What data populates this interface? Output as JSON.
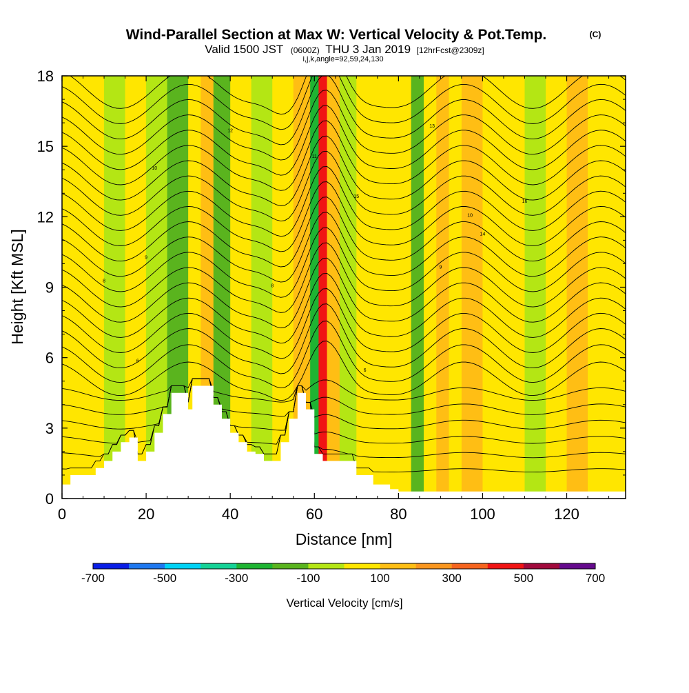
{
  "header": {
    "title": "Wind-Parallel Section at Max W: Vertical Velocity & Pot.Temp.",
    "copyright": "(C)",
    "valid_prefix": "Valid 1500 JST",
    "valid_utc": "(0600Z)",
    "valid_date": "THU 3 Jan 2019",
    "forecast": "[12hrFcst@2309z]",
    "params": "i,j,k,angle=92,59,24,130"
  },
  "chart_data": {
    "type": "heatmap",
    "title": "Wind-Parallel Section at Max W: Vertical Velocity & Pot.Temp.",
    "xlabel": "Distance [nm]",
    "ylabel": "Height [Kft MSL]",
    "xlim": [
      0,
      134
    ],
    "ylim": [
      0,
      18
    ],
    "x_ticks": [
      "0",
      "20",
      "40",
      "60",
      "80",
      "100",
      "120"
    ],
    "y_ticks": [
      "0",
      "3",
      "6",
      "9",
      "12",
      "15",
      "18"
    ],
    "velocity_columns": {
      "x": [
        0,
        5,
        10,
        15,
        20,
        25,
        27,
        30,
        33,
        36,
        40,
        45,
        50,
        55,
        57,
        59,
        61,
        63,
        66,
        70,
        75,
        80,
        83,
        86,
        89,
        92,
        95,
        100,
        105,
        110,
        115,
        120,
        125,
        130,
        134
      ],
      "w_cms": [
        30,
        60,
        -60,
        50,
        -60,
        -120,
        -160,
        40,
        120,
        -110,
        70,
        -60,
        60,
        110,
        140,
        -280,
        400,
        150,
        -40,
        70,
        40,
        20,
        -110,
        40,
        160,
        60,
        120,
        70,
        60,
        -60,
        60,
        110,
        40,
        40,
        40
      ]
    },
    "terrain_kft": {
      "x": [
        0,
        2,
        6,
        8,
        10,
        12,
        14,
        16,
        18,
        20,
        22,
        24,
        26,
        28,
        30,
        31,
        33,
        36,
        38,
        40,
        42,
        44,
        46,
        48,
        50,
        52,
        54,
        56,
        58,
        60,
        62,
        66,
        70,
        74,
        78,
        80,
        82,
        134
      ],
      "h": [
        0.6,
        1.0,
        1.0,
        1.3,
        1.6,
        2.0,
        2.4,
        2.6,
        1.6,
        2.0,
        2.8,
        3.6,
        4.5,
        4.5,
        3.8,
        4.8,
        4.8,
        4.0,
        3.4,
        2.8,
        2.4,
        2.0,
        1.9,
        1.6,
        1.6,
        2.4,
        3.4,
        4.5,
        3.8,
        1.9,
        1.6,
        1.6,
        1.0,
        0.6,
        0.4,
        0.3,
        0.3,
        0.3
      ]
    },
    "isentropes": {
      "count": 26,
      "labels": [
        "6",
        "6",
        "8",
        "8",
        "9",
        "9",
        "10",
        "10",
        "11",
        "12",
        "13",
        "14",
        "15",
        "16"
      ]
    },
    "colorbar": {
      "title": "Vertical Velocity [cm/s]",
      "range": [
        -700,
        700
      ],
      "tick_labels": [
        "-700",
        "-500",
        "-300",
        "-100",
        "100",
        "300",
        "500",
        "700"
      ],
      "colors": [
        "#0a1ee6",
        "#1e78f0",
        "#00d2f5",
        "#14d296",
        "#1eb432",
        "#5ab41e",
        "#b4e614",
        "#ffe600",
        "#ffbe14",
        "#fa961e",
        "#f5641e",
        "#f01414",
        "#a00a3c",
        "#640a8c"
      ]
    }
  }
}
